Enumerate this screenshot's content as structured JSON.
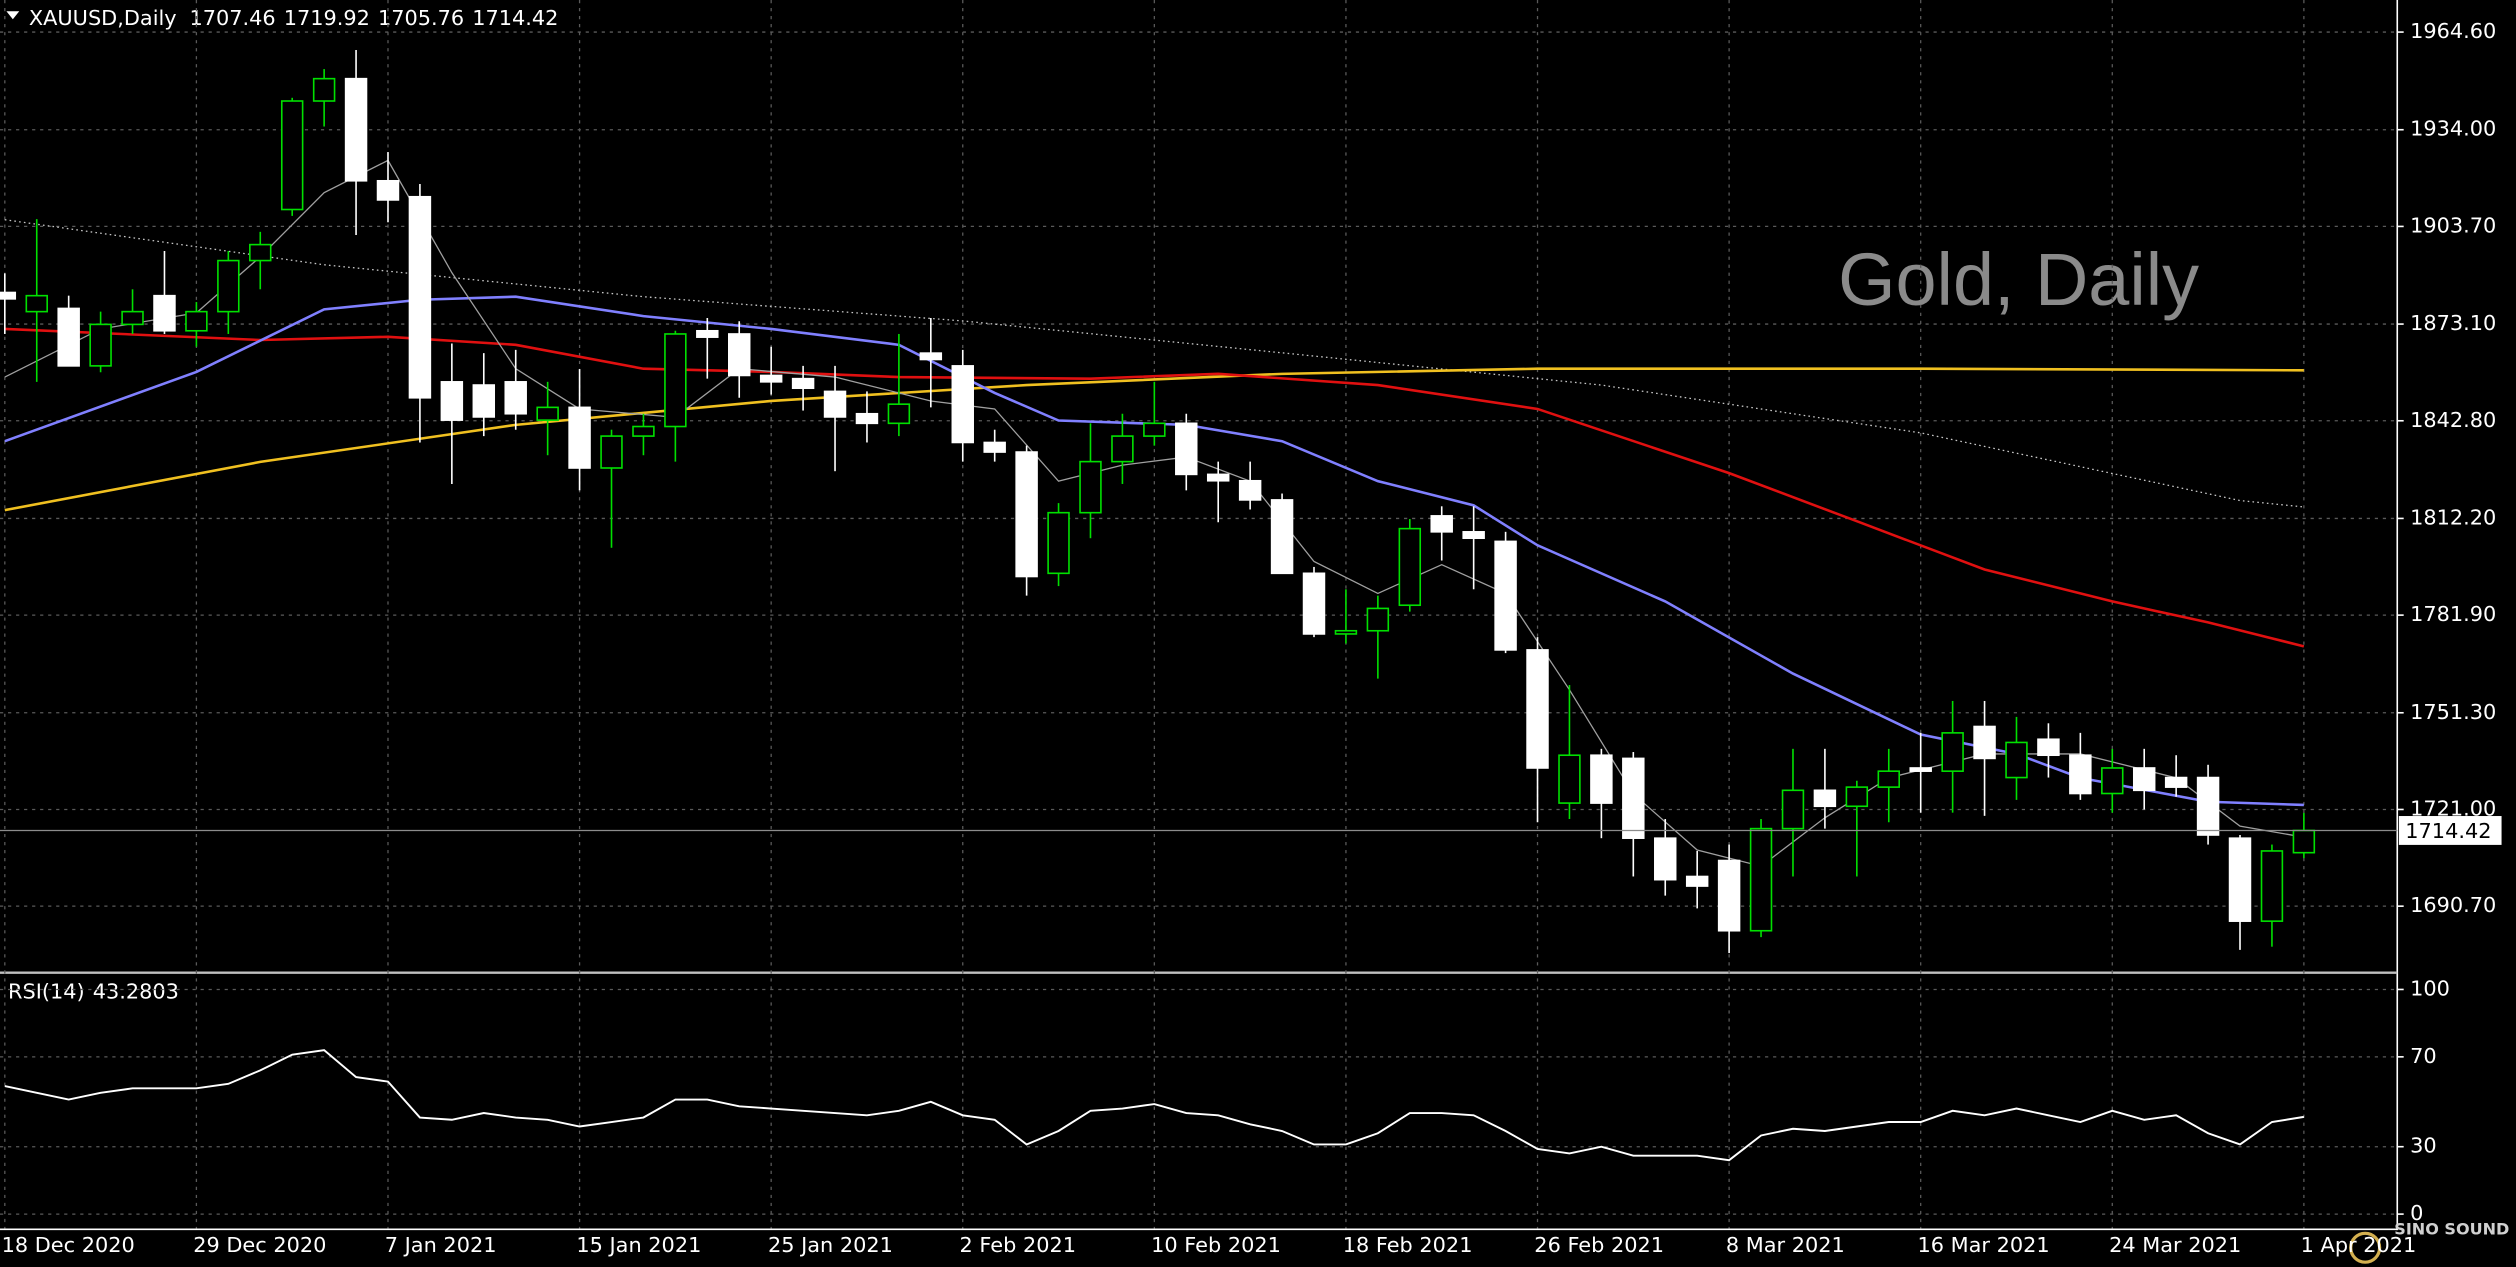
{
  "chart_data": [
    {
      "type": "candlestick",
      "symbol": "XAUUSD,Daily",
      "header_ohlc": [
        1707.46,
        1719.92,
        1705.76,
        1714.42
      ],
      "watermark": "Gold, Daily",
      "categories": [
        "18 Dec 2020",
        null,
        null,
        null,
        null,
        null,
        "29 Dec 2020",
        null,
        null,
        null,
        null,
        null,
        "7 Jan 2021",
        null,
        null,
        null,
        null,
        null,
        "15 Jan 2021",
        null,
        null,
        null,
        null,
        null,
        "25 Jan 2021",
        null,
        null,
        null,
        null,
        null,
        "2 Feb 2021",
        null,
        null,
        null,
        null,
        null,
        "10 Feb 2021",
        null,
        null,
        null,
        null,
        null,
        "18 Feb 2021",
        null,
        null,
        null,
        null,
        null,
        "26 Feb 2021",
        null,
        null,
        null,
        null,
        null,
        "8 Mar 2021",
        null,
        null,
        null,
        null,
        null,
        "16 Mar 2021",
        null,
        null,
        null,
        null,
        null,
        "24 Mar 2021",
        null,
        null,
        null,
        null,
        null,
        "1 Apr 2021"
      ],
      "open": [
        1883,
        1877,
        1878,
        1860,
        1873,
        1882,
        1871,
        1877,
        1893,
        1909,
        1943,
        1950,
        1918,
        1913,
        1855,
        1854,
        1855,
        1843,
        1847,
        1828,
        1838,
        1841,
        1871,
        1870,
        1857,
        1856,
        1852,
        1845,
        1842,
        1864,
        1860,
        1836,
        1833,
        1795,
        1814,
        1830,
        1838,
        1842,
        1826,
        1824,
        1818,
        1795,
        1776,
        1777,
        1785,
        1813,
        1808,
        1805,
        1771,
        1723,
        1738,
        1737,
        1712,
        1700,
        1705,
        1683,
        1715,
        1727,
        1722,
        1728,
        1734,
        1733,
        1747,
        1731,
        1743,
        1738,
        1726,
        1734,
        1731,
        1731,
        1712,
        1686,
        1707.46
      ],
      "high": [
        1889,
        1906,
        1882,
        1877,
        1884,
        1896,
        1880,
        1896,
        1902,
        1944,
        1953,
        1959,
        1927,
        1917,
        1867,
        1864,
        1865,
        1855,
        1859,
        1840,
        1845,
        1871,
        1875,
        1874,
        1866,
        1860,
        1860,
        1852,
        1870,
        1875,
        1865,
        1840,
        1835,
        1817,
        1842,
        1845,
        1855,
        1845,
        1830,
        1830,
        1820,
        1797,
        1790,
        1788,
        1812,
        1816,
        1816,
        1808,
        1775,
        1760,
        1740,
        1739,
        1718,
        1708,
        1710,
        1718,
        1740,
        1740,
        1730,
        1740,
        1745,
        1755,
        1755,
        1750,
        1748,
        1745,
        1740,
        1740,
        1738,
        1735,
        1713,
        1710,
        1719.92
      ],
      "low": [
        1870,
        1855,
        1860,
        1858,
        1870,
        1870,
        1866,
        1870,
        1884,
        1907,
        1935,
        1901,
        1905,
        1836,
        1823,
        1838,
        1840,
        1832,
        1821,
        1803,
        1832,
        1830,
        1856,
        1850,
        1851,
        1846,
        1827,
        1836,
        1838,
        1847,
        1830,
        1830,
        1788,
        1791,
        1806,
        1823,
        1835,
        1821,
        1811,
        1815,
        1795,
        1775,
        1773,
        1762,
        1783,
        1799,
        1790,
        1770,
        1717,
        1718,
        1712,
        1700,
        1694,
        1690,
        1676,
        1681,
        1700,
        1715,
        1700,
        1717,
        1720,
        1720,
        1719,
        1724,
        1731,
        1724,
        1720,
        1721,
        1725,
        1710,
        1677,
        1678,
        1705.76
      ],
      "close": [
        1881,
        1882,
        1860,
        1873,
        1877,
        1871,
        1877,
        1893,
        1898,
        1943,
        1950,
        1918,
        1912,
        1850,
        1843,
        1844,
        1845,
        1847,
        1828,
        1838,
        1841,
        1870,
        1869,
        1857,
        1855,
        1853,
        1844,
        1842,
        1848,
        1862,
        1836,
        1833,
        1794,
        1814,
        1830,
        1838,
        1842,
        1826,
        1824,
        1818,
        1795,
        1776,
        1777,
        1784,
        1809,
        1808,
        1806,
        1771,
        1734,
        1738,
        1723,
        1712,
        1699,
        1697,
        1683,
        1715,
        1727,
        1722,
        1728,
        1733,
        1733,
        1745,
        1737,
        1742,
        1738,
        1726,
        1734,
        1727,
        1728,
        1713,
        1686,
        1708,
        1714.42
      ],
      "up_color": "#00e000",
      "down_color": "#ffffff",
      "overlays": [
        {
          "color": "#c8c8c8",
          "dotted": true,
          "x": [
            0,
            10,
            20,
            30,
            40,
            50,
            60,
            70,
            72
          ],
          "values": [
            1905.8,
            1891.7,
            1881.7,
            1874.1,
            1864.1,
            1854.0,
            1839.0,
            1817.8,
            1815.8
          ]
        },
        {
          "color": "#f0c020",
          "dotted": false,
          "x": [
            0,
            8,
            16,
            24,
            32,
            40,
            48,
            60,
            72
          ],
          "values": [
            1814.8,
            1829.9,
            1841.5,
            1849.0,
            1854.0,
            1857.5,
            1859.1,
            1859.1,
            1858.6
          ]
        },
        {
          "color": "#e01010",
          "dotted": false,
          "x": [
            0,
            8,
            12,
            16,
            20,
            24,
            28,
            34,
            38,
            43,
            48,
            54,
            58,
            62,
            66,
            69,
            72
          ],
          "values": [
            1871.6,
            1868.1,
            1869.1,
            1866.6,
            1859.1,
            1858.1,
            1856.5,
            1856.0,
            1857.5,
            1854.0,
            1846.5,
            1826.4,
            1811.3,
            1796.2,
            1786.2,
            1779.6,
            1772.1
          ]
        },
        {
          "color": "#8080ff",
          "dotted": false,
          "x": [
            0,
            6,
            10,
            13,
            16,
            20,
            24,
            28,
            31,
            33,
            37,
            40,
            43,
            46,
            48,
            52,
            56,
            60,
            63,
            65,
            69,
            72
          ],
          "values": [
            1836.4,
            1858.1,
            1877.7,
            1880.7,
            1881.7,
            1875.6,
            1871.6,
            1866.6,
            1851.5,
            1842.9,
            1841.5,
            1836.4,
            1823.9,
            1816.3,
            1803.8,
            1786.2,
            1763.6,
            1744.5,
            1738.4,
            1730.9,
            1723.4,
            1722.4
          ]
        },
        {
          "color": "#a0a0a0",
          "dotted": false,
          "x": [
            0,
            3,
            6,
            8,
            10,
            12,
            14,
            16,
            18,
            21,
            23,
            26,
            29,
            31,
            33,
            35,
            37,
            39,
            41,
            43,
            45,
            47,
            49,
            51,
            53,
            55,
            57,
            59,
            62,
            65,
            68,
            70,
            72
          ],
          "values": [
            1856.5,
            1871.6,
            1876.6,
            1894.2,
            1914.3,
            1924.4,
            1889.2,
            1859.1,
            1846.5,
            1843.9,
            1859.1,
            1856.5,
            1849.0,
            1846.5,
            1823.9,
            1828.9,
            1831.4,
            1823.9,
            1798.7,
            1788.7,
            1797.7,
            1788.7,
            1758.5,
            1725.9,
            1708.3,
            1703.2,
            1718.4,
            1730.9,
            1738.4,
            1738.4,
            1730.9,
            1715.8,
            1712.3
          ]
        }
      ],
      "last_price": 1714.42,
      "ylim": [
        1670.1,
        1974.65
      ],
      "yticks": [
        {
          "value": 1964.6,
          "label": "1964.60"
        },
        {
          "value": 1934.0,
          "label": "1934.00"
        },
        {
          "value": 1903.7,
          "label": "1903.70"
        },
        {
          "value": 1873.1,
          "label": "1873.10"
        },
        {
          "value": 1842.8,
          "label": "1842.80"
        },
        {
          "value": 1812.2,
          "label": "1812.20"
        },
        {
          "value": 1781.9,
          "label": "1781.90"
        },
        {
          "value": 1751.3,
          "label": "1751.30"
        },
        {
          "value": 1721.0,
          "label": "1721.00"
        },
        {
          "value": 1690.7,
          "label": "1690.70"
        }
      ],
      "grid": true
    },
    {
      "type": "line",
      "title": "RSI(14)",
      "color": "#ffffff",
      "values": [
        57,
        54,
        51,
        54,
        56,
        56,
        56,
        58,
        64,
        71,
        73,
        61,
        59,
        43,
        42,
        45,
        43,
        42,
        39,
        41,
        43,
        51,
        51,
        48,
        47,
        46,
        45,
        44,
        46,
        50,
        44,
        42,
        31,
        37,
        46,
        47,
        49,
        45,
        44,
        40,
        37,
        31,
        31,
        36,
        45,
        45,
        44,
        37,
        29,
        27,
        30,
        26,
        26,
        26,
        24,
        35,
        38,
        37,
        39,
        41,
        41,
        46,
        44,
        47,
        44,
        41,
        46,
        42,
        44,
        36,
        31,
        41,
        43.2803
      ],
      "ylim": [
        -5.7,
        107.1
      ],
      "yticks": [
        100,
        70,
        30,
        0
      ],
      "grid": true
    }
  ],
  "logo": "SINO SOUND"
}
